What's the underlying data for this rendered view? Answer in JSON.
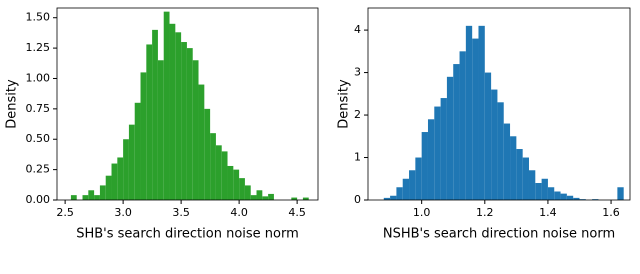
{
  "chart_data": [
    {
      "type": "histogram",
      "color": "#2ca02c",
      "xlabel": "SHB's search direction noise norm",
      "ylabel": "Density",
      "bins": [
        2.55,
        2.6,
        2.65,
        2.7,
        2.75,
        2.8,
        2.85,
        2.9,
        2.95,
        3.0,
        3.05,
        3.1,
        3.15,
        3.2,
        3.25,
        3.3,
        3.35,
        3.4,
        3.45,
        3.5,
        3.55,
        3.6,
        3.65,
        3.7,
        3.75,
        3.8,
        3.85,
        3.9,
        3.95,
        4.0,
        4.05,
        4.1,
        4.15,
        4.2,
        4.25,
        4.3,
        4.35,
        4.4,
        4.45,
        4.5,
        4.55,
        4.6
      ],
      "values": [
        0.04,
        0,
        0.04,
        0.08,
        0.04,
        0.12,
        0.2,
        0.3,
        0.35,
        0.5,
        0.62,
        0.8,
        1.05,
        1.28,
        1.4,
        1.15,
        1.55,
        1.45,
        1.38,
        1.3,
        1.25,
        1.15,
        0.95,
        0.75,
        0.55,
        0.45,
        0.4,
        0.28,
        0.25,
        0.18,
        0.12,
        0.04,
        0.08,
        0.03,
        0.05,
        0,
        0,
        0,
        0.02,
        0,
        0.02
      ],
      "xlim": [
        2.43,
        4.68
      ],
      "ylim": [
        0,
        1.58
      ],
      "xticks": [
        2.5,
        {
          "value": 3.0,
          "label": "3.0"
        },
        3.5,
        {
          "value": 4.0,
          "label": "4.0"
        },
        4.5
      ],
      "yticks": [
        {
          "value": 0,
          "label": "0.00"
        },
        {
          "value": 0.25,
          "label": "0.25"
        },
        {
          "value": 0.5,
          "label": "0.50"
        },
        {
          "value": 0.75,
          "label": "0.75"
        },
        {
          "value": 1,
          "label": "1.00"
        },
        {
          "value": 1.25,
          "label": "1.25"
        },
        {
          "value": 1.5,
          "label": "1.50"
        }
      ]
    },
    {
      "type": "histogram",
      "color": "#1f77b4",
      "xlabel": "NSHB's search direction noise norm",
      "ylabel": "Density",
      "bins": [
        0.88,
        0.9,
        0.92,
        0.94,
        0.96,
        0.98,
        1.0,
        1.02,
        1.04,
        1.06,
        1.08,
        1.1,
        1.12,
        1.14,
        1.16,
        1.18,
        1.2,
        1.22,
        1.24,
        1.26,
        1.28,
        1.3,
        1.32,
        1.34,
        1.36,
        1.38,
        1.4,
        1.42,
        1.44,
        1.46,
        1.48,
        1.5,
        1.52,
        1.54,
        1.56,
        1.58,
        1.6,
        1.62,
        1.64
      ],
      "values": [
        0.05,
        0.1,
        0.3,
        0.5,
        0.7,
        1.0,
        1.6,
        1.9,
        2.2,
        2.4,
        2.9,
        3.2,
        3.5,
        4.1,
        3.8,
        4.1,
        3.0,
        2.6,
        2.3,
        1.8,
        1.5,
        1.2,
        1.0,
        0.7,
        0.4,
        0.5,
        0.3,
        0.2,
        0.15,
        0.1,
        0.05,
        0.02,
        0,
        0.02,
        0,
        0,
        0,
        0.3
      ],
      "xlim": [
        0.83,
        1.66
      ],
      "ylim": [
        0,
        4.52
      ],
      "xticks": [
        {
          "value": 1.0,
          "label": "1.0"
        },
        1.2,
        1.4,
        1.6
      ],
      "yticks": [
        0,
        1,
        2,
        3,
        4
      ]
    }
  ]
}
